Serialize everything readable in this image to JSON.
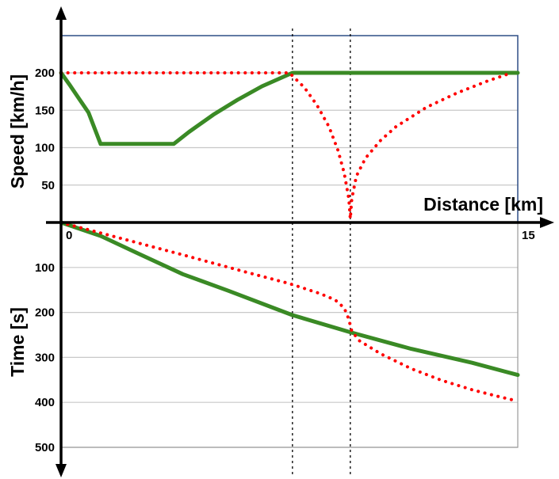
{
  "chart_data": [
    {
      "type": "line",
      "ylabel": "Speed [km/h]",
      "xlabel": "Distance [km]",
      "xlim": [
        0,
        15
      ],
      "ylim": [
        0,
        250
      ],
      "x_ticks": [
        "0",
        "15"
      ],
      "y_ticks": [
        50,
        100,
        150,
        200
      ],
      "grid": true,
      "reference_lines_x": [
        7.6,
        9.5
      ],
      "series": [
        {
          "style": "solid",
          "color": "#3a8a25",
          "x": [
            0,
            0.3,
            0.6,
            0.9,
            1.3,
            2.4,
            3.7,
            4.2,
            5.0,
            5.8,
            6.6,
            7.6,
            15
          ],
          "y": [
            200,
            183,
            165,
            147,
            105,
            105,
            105,
            121,
            144,
            164,
            182,
            200,
            200
          ]
        },
        {
          "style": "dotted",
          "color": "#ff0000",
          "x": [
            0,
            7.5,
            8.0,
            8.4,
            8.8,
            9.1,
            9.3,
            9.45,
            9.5,
            9.55,
            9.7,
            10.0,
            10.5,
            11.0,
            12.0,
            13.0,
            14.0,
            14.8
          ],
          "y": [
            200,
            200,
            180,
            157,
            128,
            96,
            66,
            32,
            5,
            32,
            62,
            86,
            110,
            128,
            154,
            173,
            189,
            200
          ]
        }
      ]
    },
    {
      "type": "line",
      "ylabel": "Time [s]",
      "xlim": [
        0,
        15
      ],
      "ylim": [
        500,
        0
      ],
      "y_ticks": [
        100,
        200,
        300,
        400,
        500
      ],
      "grid": true,
      "series": [
        {
          "style": "solid",
          "color": "#3a8a25",
          "x": [
            0,
            1.3,
            2.5,
            4.0,
            5.5,
            7.6,
            9.5,
            11.5,
            13.5,
            15
          ],
          "y": [
            0,
            30,
            68,
            115,
            152,
            206,
            244,
            281,
            312,
            339
          ]
        },
        {
          "style": "dotted",
          "color": "#ff0000",
          "x": [
            0,
            2.0,
            4.0,
            6.0,
            7.5,
            8.5,
            9.0,
            9.3,
            9.45,
            9.55,
            9.8,
            10.5,
            11.5,
            12.5,
            13.5,
            14.3,
            14.8
          ],
          "y": [
            0,
            36,
            72,
            109,
            136,
            158,
            172,
            190,
            215,
            242,
            263,
            292,
            325,
            351,
            372,
            386,
            394
          ]
        }
      ]
    }
  ]
}
